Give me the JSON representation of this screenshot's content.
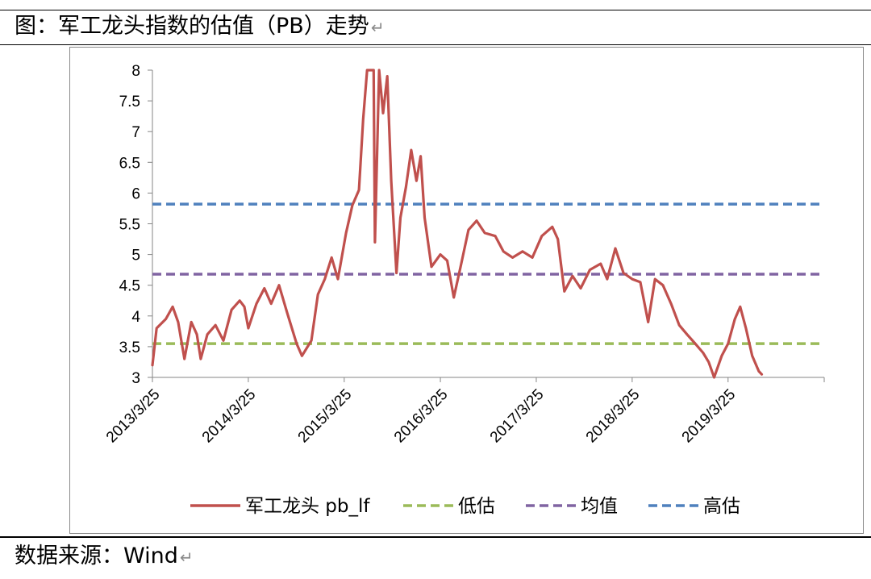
{
  "caption": {
    "text": "图：军工龙头指数的估值（PB）走势",
    "return_mark": "↵"
  },
  "source": {
    "text": "数据来源：Wind",
    "return_mark": "↵"
  },
  "chart_data": {
    "type": "line",
    "title": "",
    "xlabel": "",
    "ylabel": "",
    "ylim": [
      3,
      8
    ],
    "yticks": [
      3,
      3.5,
      4,
      4.5,
      5,
      5.5,
      6,
      6.5,
      7,
      7.5,
      8
    ],
    "ytick_labels": [
      "3",
      "3.5",
      "4",
      "4.5",
      "5",
      "5.5",
      "6",
      "6.5",
      "7",
      "7.5",
      "8"
    ],
    "x_axis_type": "date",
    "x_range": [
      "2013-03-25",
      "2020-03-25"
    ],
    "x_ticks": [
      "2013-03-25",
      "2014-03-25",
      "2015-03-25",
      "2016-03-25",
      "2017-03-25",
      "2018-03-25",
      "2019-03-25"
    ],
    "x_tick_labels": [
      "2013/3/25",
      "2014/3/25",
      "2015/3/25",
      "2016/3/25",
      "2017/3/25",
      "2018/3/25",
      "2019/3/25"
    ],
    "grid": false,
    "legend_position": "bottom",
    "series": [
      {
        "name": "军工龙头 pb_lf",
        "color": "#c0504d",
        "style": "solid",
        "points": [
          [
            "2013-03-25",
            3.2
          ],
          [
            "2013-04-10",
            3.8
          ],
          [
            "2013-05-15",
            3.95
          ],
          [
            "2013-06-10",
            4.15
          ],
          [
            "2013-07-01",
            3.9
          ],
          [
            "2013-07-25",
            3.3
          ],
          [
            "2013-08-20",
            3.9
          ],
          [
            "2013-09-10",
            3.7
          ],
          [
            "2013-09-25",
            3.3
          ],
          [
            "2013-10-20",
            3.7
          ],
          [
            "2013-11-20",
            3.85
          ],
          [
            "2013-12-20",
            3.6
          ],
          [
            "2014-01-20",
            4.1
          ],
          [
            "2014-02-20",
            4.25
          ],
          [
            "2014-03-10",
            4.15
          ],
          [
            "2014-03-25",
            3.8
          ],
          [
            "2014-04-25",
            4.2
          ],
          [
            "2014-05-25",
            4.45
          ],
          [
            "2014-06-20",
            4.2
          ],
          [
            "2014-07-20",
            4.5
          ],
          [
            "2014-08-20",
            4.05
          ],
          [
            "2014-09-25",
            3.55
          ],
          [
            "2014-10-15",
            3.35
          ],
          [
            "2014-11-20",
            3.6
          ],
          [
            "2014-12-15",
            4.35
          ],
          [
            "2015-01-10",
            4.6
          ],
          [
            "2015-02-05",
            4.95
          ],
          [
            "2015-03-01",
            4.6
          ],
          [
            "2015-04-01",
            5.35
          ],
          [
            "2015-04-25",
            5.8
          ],
          [
            "2015-05-20",
            6.05
          ],
          [
            "2015-06-05",
            7.2
          ],
          [
            "2015-06-20",
            8.0
          ],
          [
            "2015-07-15",
            8.0
          ],
          [
            "2015-07-20",
            5.2
          ],
          [
            "2015-08-05",
            8.0
          ],
          [
            "2015-08-20",
            7.3
          ],
          [
            "2015-09-05",
            7.9
          ],
          [
            "2015-09-20",
            6.2
          ],
          [
            "2015-10-10",
            4.7
          ],
          [
            "2015-10-25",
            5.6
          ],
          [
            "2015-11-15",
            6.1
          ],
          [
            "2015-12-05",
            6.7
          ],
          [
            "2015-12-25",
            6.2
          ],
          [
            "2016-01-10",
            6.6
          ],
          [
            "2016-01-25",
            5.6
          ],
          [
            "2016-02-20",
            4.8
          ],
          [
            "2016-03-25",
            5.0
          ],
          [
            "2016-04-20",
            4.9
          ],
          [
            "2016-05-15",
            4.3
          ],
          [
            "2016-06-10",
            4.8
          ],
          [
            "2016-07-10",
            5.4
          ],
          [
            "2016-08-10",
            5.55
          ],
          [
            "2016-09-10",
            5.35
          ],
          [
            "2016-10-20",
            5.3
          ],
          [
            "2016-11-20",
            5.05
          ],
          [
            "2016-12-25",
            4.95
          ],
          [
            "2017-02-01",
            5.05
          ],
          [
            "2017-03-10",
            4.95
          ],
          [
            "2017-04-15",
            5.3
          ],
          [
            "2017-05-25",
            5.45
          ],
          [
            "2017-06-15",
            5.25
          ],
          [
            "2017-07-10",
            4.4
          ],
          [
            "2017-08-10",
            4.65
          ],
          [
            "2017-09-10",
            4.45
          ],
          [
            "2017-10-15",
            4.75
          ],
          [
            "2017-11-25",
            4.85
          ],
          [
            "2017-12-20",
            4.6
          ],
          [
            "2018-01-20",
            5.1
          ],
          [
            "2018-02-20",
            4.7
          ],
          [
            "2018-03-25",
            4.6
          ],
          [
            "2018-04-25",
            4.55
          ],
          [
            "2018-05-25",
            3.9
          ],
          [
            "2018-06-20",
            4.6
          ],
          [
            "2018-07-20",
            4.5
          ],
          [
            "2018-08-20",
            4.2
          ],
          [
            "2018-09-20",
            3.85
          ],
          [
            "2018-10-20",
            3.7
          ],
          [
            "2018-11-20",
            3.55
          ],
          [
            "2018-12-20",
            3.4
          ],
          [
            "2019-01-10",
            3.25
          ],
          [
            "2019-01-31",
            3.0
          ],
          [
            "2019-03-01",
            3.35
          ],
          [
            "2019-03-25",
            3.55
          ],
          [
            "2019-04-20",
            3.95
          ],
          [
            "2019-05-10",
            4.15
          ],
          [
            "2019-06-01",
            3.8
          ],
          [
            "2019-06-25",
            3.35
          ],
          [
            "2019-07-20",
            3.1
          ],
          [
            "2019-07-31",
            3.05
          ]
        ]
      },
      {
        "name": "低估",
        "color": "#9bbb59",
        "style": "dashed",
        "value": 3.55
      },
      {
        "name": "均值",
        "color": "#8064a2",
        "style": "dashed",
        "value": 4.68
      },
      {
        "name": "高估",
        "color": "#4f81bd",
        "style": "dashed",
        "value": 5.82
      }
    ]
  }
}
